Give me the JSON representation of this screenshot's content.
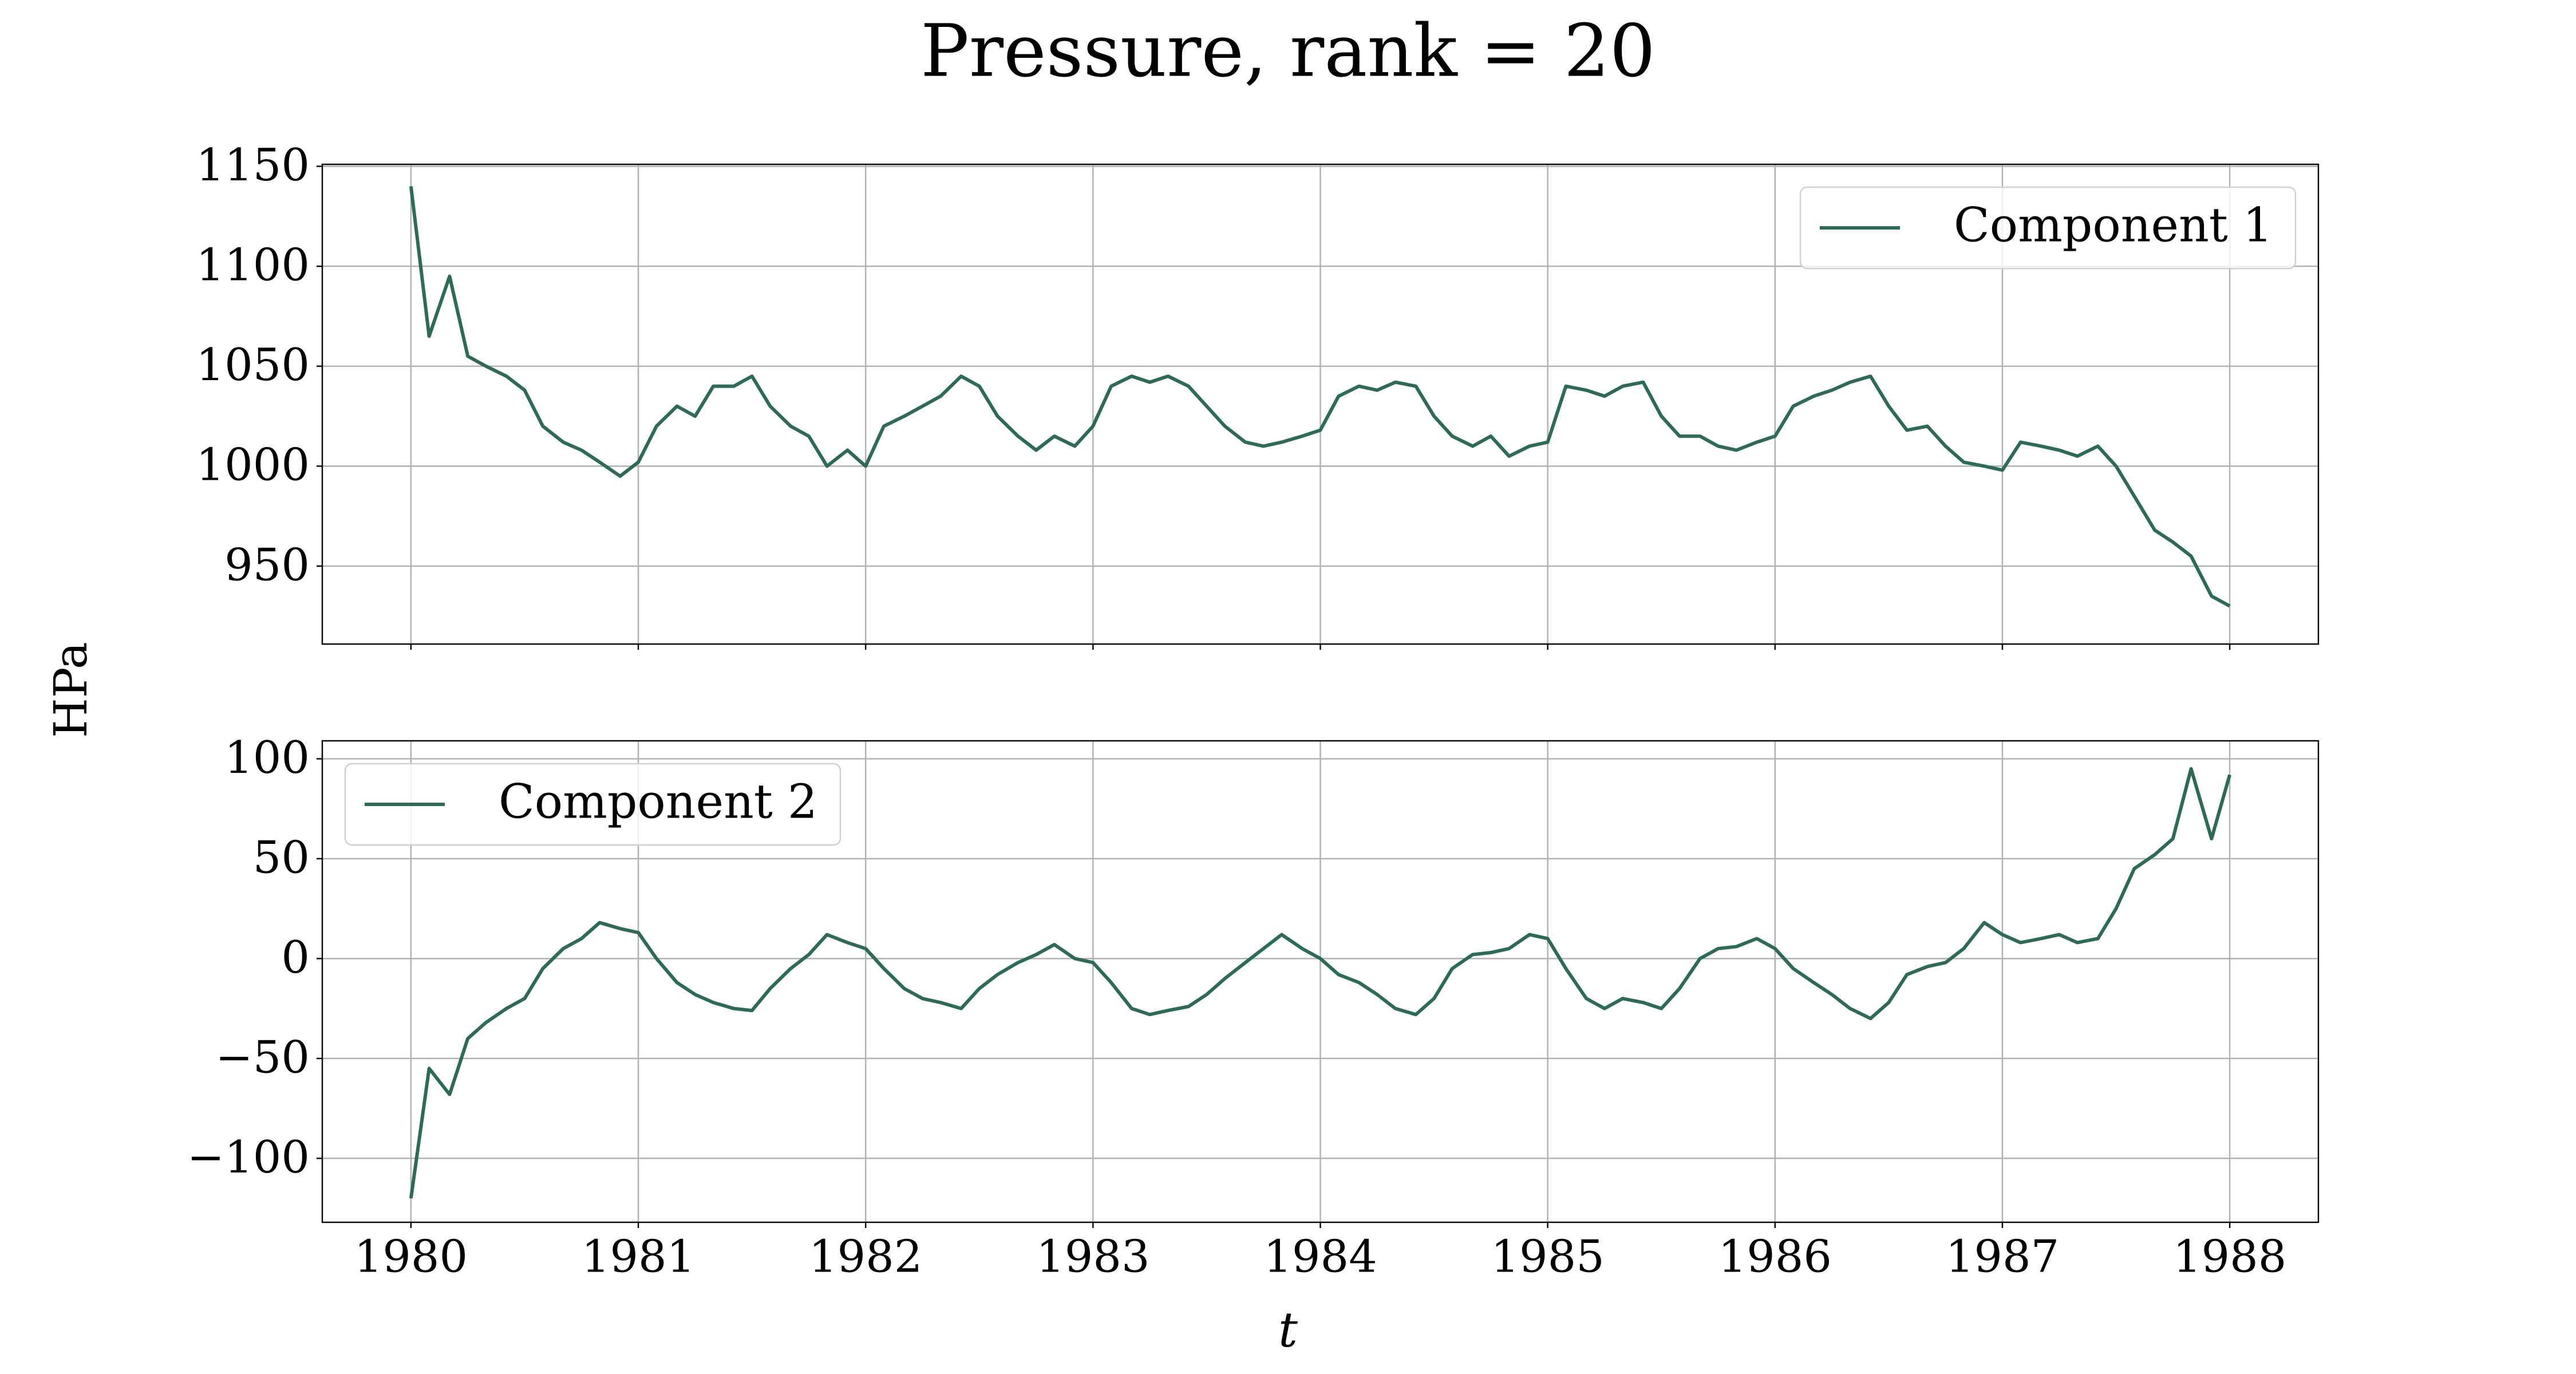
{
  "title": "Pressure, rank = 20",
  "ylabel": "HPa",
  "xlabel": "t",
  "chart_data": [
    {
      "type": "line",
      "legend": "upper right",
      "grid": true,
      "xlim": [
        1979.61,
        1988.39
      ],
      "ylim": [
        911,
        1151
      ],
      "xticks": [
        1980,
        1981,
        1982,
        1983,
        1984,
        1985,
        1986,
        1987,
        1988
      ],
      "yticks": [
        950,
        1000,
        1050,
        1100,
        1150
      ],
      "x": [
        1980,
        1980.08,
        1980.17,
        1980.25,
        1980.33,
        1980.42,
        1980.5,
        1980.58,
        1980.67,
        1980.75,
        1980.83,
        1980.92,
        1981,
        1981.08,
        1981.17,
        1981.25,
        1981.33,
        1981.42,
        1981.5,
        1981.58,
        1981.67,
        1981.75,
        1981.83,
        1981.92,
        1982,
        1982.08,
        1982.17,
        1982.25,
        1982.33,
        1982.42,
        1982.5,
        1982.58,
        1982.67,
        1982.75,
        1982.83,
        1982.92,
        1983,
        1983.08,
        1983.17,
        1983.25,
        1983.33,
        1983.42,
        1983.5,
        1983.58,
        1983.67,
        1983.75,
        1983.83,
        1983.92,
        1984,
        1984.08,
        1984.17,
        1984.25,
        1984.33,
        1984.42,
        1984.5,
        1984.58,
        1984.67,
        1984.75,
        1984.83,
        1984.92,
        1985,
        1985.08,
        1985.17,
        1985.25,
        1985.33,
        1985.42,
        1985.5,
        1985.58,
        1985.67,
        1985.75,
        1985.83,
        1985.92,
        1986,
        1986.08,
        1986.17,
        1986.25,
        1986.33,
        1986.42,
        1986.5,
        1986.58,
        1986.67,
        1986.75,
        1986.83,
        1986.92,
        1987,
        1987.08,
        1987.17,
        1987.25,
        1987.33,
        1987.42,
        1987.5,
        1987.58,
        1987.67,
        1987.75,
        1987.83,
        1987.92,
        1988
      ],
      "series": [
        {
          "name": "Component 1",
          "color": "#2e6b55",
          "values": [
            1140,
            1065,
            1095,
            1055,
            1050,
            1045,
            1038,
            1020,
            1012,
            1008,
            1002,
            995,
            1002,
            1020,
            1030,
            1025,
            1040,
            1040,
            1045,
            1030,
            1020,
            1015,
            1000,
            1008,
            1000,
            1020,
            1025,
            1030,
            1035,
            1045,
            1040,
            1025,
            1015,
            1008,
            1015,
            1010,
            1020,
            1040,
            1045,
            1042,
            1045,
            1040,
            1030,
            1020,
            1012,
            1010,
            1012,
            1015,
            1018,
            1035,
            1040,
            1038,
            1042,
            1040,
            1025,
            1015,
            1010,
            1015,
            1005,
            1010,
            1012,
            1040,
            1038,
            1035,
            1040,
            1042,
            1025,
            1015,
            1015,
            1010,
            1008,
            1012,
            1015,
            1030,
            1035,
            1038,
            1042,
            1045,
            1030,
            1018,
            1020,
            1010,
            1002,
            1000,
            998,
            1012,
            1010,
            1008,
            1005,
            1010,
            1000,
            985,
            968,
            962,
            955,
            935,
            930
          ]
        }
      ]
    },
    {
      "type": "line",
      "legend": "upper left",
      "grid": true,
      "xlim": [
        1979.61,
        1988.39
      ],
      "ylim": [
        -132,
        109
      ],
      "xticks": [
        1980,
        1981,
        1982,
        1983,
        1984,
        1985,
        1986,
        1987,
        1988
      ],
      "yticks": [
        {
          "value": -100,
          "label": "−100"
        },
        {
          "value": -50,
          "label": "−50"
        },
        0,
        50,
        100
      ],
      "x": [
        1980,
        1980.08,
        1980.17,
        1980.25,
        1980.33,
        1980.42,
        1980.5,
        1980.58,
        1980.67,
        1980.75,
        1980.83,
        1980.92,
        1981,
        1981.08,
        1981.17,
        1981.25,
        1981.33,
        1981.42,
        1981.5,
        1981.58,
        1981.67,
        1981.75,
        1981.83,
        1981.92,
        1982,
        1982.08,
        1982.17,
        1982.25,
        1982.33,
        1982.42,
        1982.5,
        1982.58,
        1982.67,
        1982.75,
        1982.83,
        1982.92,
        1983,
        1983.08,
        1983.17,
        1983.25,
        1983.33,
        1983.42,
        1983.5,
        1983.58,
        1983.67,
        1983.75,
        1983.83,
        1983.92,
        1984,
        1984.08,
        1984.17,
        1984.25,
        1984.33,
        1984.42,
        1984.5,
        1984.58,
        1984.67,
        1984.75,
        1984.83,
        1984.92,
        1985,
        1985.08,
        1985.17,
        1985.25,
        1985.33,
        1985.42,
        1985.5,
        1985.58,
        1985.67,
        1985.75,
        1985.83,
        1985.92,
        1986,
        1986.08,
        1986.17,
        1986.25,
        1986.33,
        1986.42,
        1986.5,
        1986.58,
        1986.67,
        1986.75,
        1986.83,
        1986.92,
        1987,
        1987.08,
        1987.17,
        1987.25,
        1987.33,
        1987.42,
        1987.5,
        1987.58,
        1987.67,
        1987.75,
        1987.83,
        1987.92,
        1988
      ],
      "series": [
        {
          "name": "Component 2",
          "color": "#2e6b55",
          "values": [
            -120,
            -55,
            -68,
            -40,
            -32,
            -25,
            -20,
            -5,
            5,
            10,
            18,
            15,
            13,
            0,
            -12,
            -18,
            -22,
            -25,
            -26,
            -15,
            -5,
            2,
            12,
            8,
            5,
            -5,
            -15,
            -20,
            -22,
            -25,
            -15,
            -8,
            -2,
            2,
            7,
            0,
            -2,
            -12,
            -25,
            -28,
            -26,
            -24,
            -18,
            -10,
            -2,
            5,
            12,
            5,
            0,
            -8,
            -12,
            -18,
            -25,
            -28,
            -20,
            -5,
            2,
            3,
            5,
            12,
            10,
            -5,
            -20,
            -25,
            -20,
            -22,
            -25,
            -15,
            0,
            5,
            6,
            10,
            5,
            -5,
            -12,
            -18,
            -25,
            -30,
            -22,
            -8,
            -4,
            -2,
            5,
            18,
            12,
            8,
            10,
            12,
            8,
            10,
            25,
            45,
            52,
            60,
            95,
            60,
            92
          ]
        }
      ]
    }
  ]
}
